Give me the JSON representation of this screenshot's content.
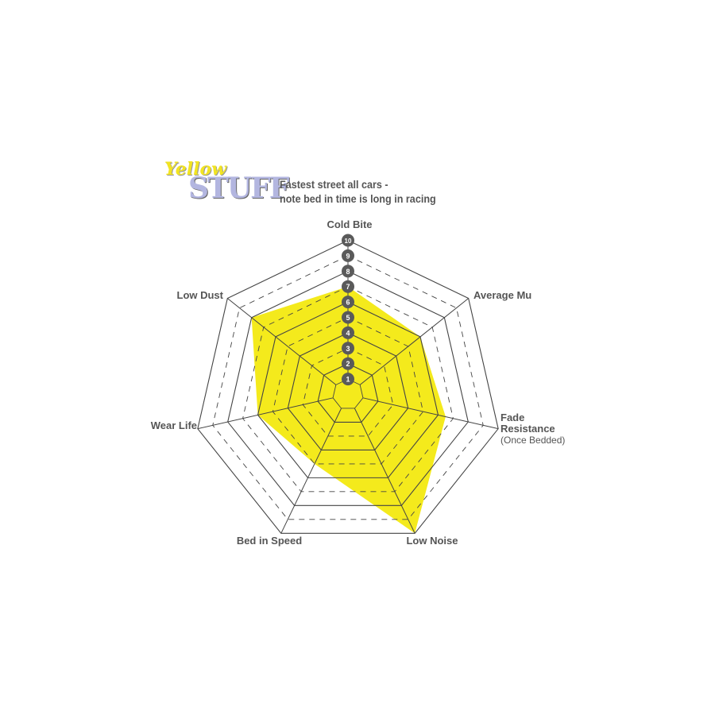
{
  "logo": {
    "line1": "Yellow",
    "line2": "STUFF"
  },
  "subtitle": [
    "Fastest street all cars -",
    "note bed in time is long in racing"
  ],
  "chart_data": {
    "type": "radar",
    "title": "",
    "axes": [
      "Cold Bite",
      "Average Mu",
      "Fade Resistance",
      "Low Noise",
      "Bed in Speed",
      "Wear Life",
      "Low Dust"
    ],
    "axis_sublabels": {
      "Fade Resistance": "(Once Bedded)"
    },
    "scale": {
      "min": 0,
      "max": 10,
      "tick_labels": [
        "1",
        "2",
        "3",
        "4",
        "5",
        "6",
        "7",
        "8",
        "9",
        "10"
      ]
    },
    "values": [
      7,
      6,
      6.5,
      10,
      5,
      6,
      8
    ],
    "fill_color": "#f4ea1c",
    "grid_color": "#444444",
    "badge_color": "#5a5a5a"
  }
}
